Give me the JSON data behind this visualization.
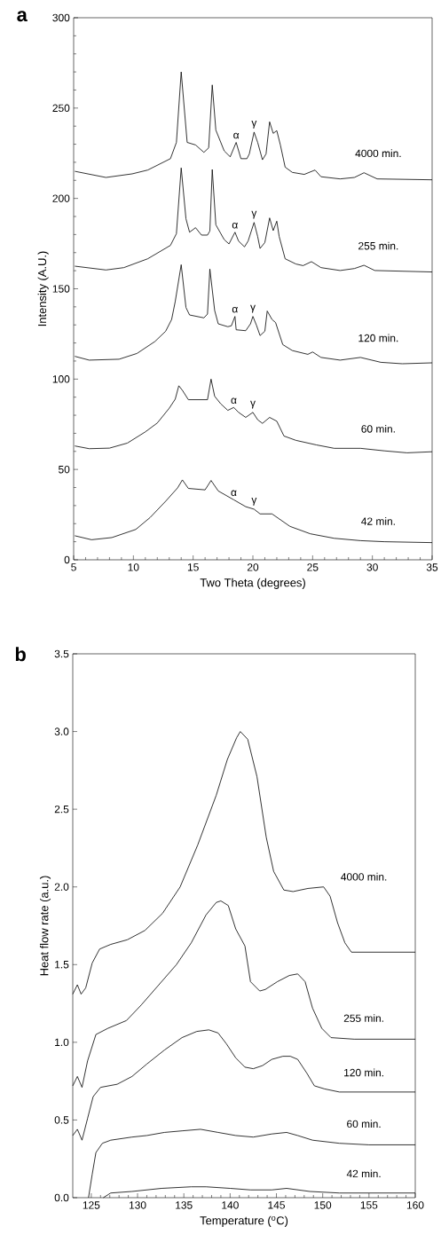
{
  "chart_data": [
    {
      "type": "line",
      "title": "a",
      "xlabel": "Two Theta (degrees)",
      "ylabel": "Intensity (A.U.)",
      "xlim": [
        5,
        35
      ],
      "ylim": [
        0,
        300
      ],
      "xticks": [
        5,
        10,
        15,
        20,
        25,
        30,
        35
      ],
      "yticks": [
        0,
        50,
        100,
        150,
        200,
        250,
        300
      ],
      "series": [
        {
          "name": "4000 min.",
          "color": "#000000",
          "x": [
            5.1,
            7.7,
            9.9,
            11.2,
            13.1,
            13.6,
            14.0,
            14.5,
            15.2,
            15.9,
            16.3,
            16.6,
            16.9,
            17.6,
            18.1,
            18.6,
            19.0,
            19.5,
            19.7,
            20.1,
            20.4,
            20.8,
            21.1,
            21.4,
            21.7,
            22.0,
            22.3,
            22.7,
            23.3,
            24.3,
            25.2,
            25.7,
            27.3,
            28.5,
            29.3,
            30.4,
            35
          ],
          "values": [
            215,
            211.6,
            213.6,
            215.7,
            222,
            231,
            270,
            231,
            229.6,
            225.5,
            228,
            262.8,
            237.8,
            226.3,
            223,
            231,
            222,
            222,
            224.6,
            236.7,
            231,
            221.4,
            224.6,
            242.4,
            236,
            237.5,
            229.6,
            217.3,
            214.4,
            213.3,
            215.7,
            212,
            210.8,
            211.6,
            214.2,
            210.8,
            210.3
          ]
        },
        {
          "name": "255 min.",
          "color": "#000000",
          "x": [
            5.1,
            7.7,
            9.2,
            11.2,
            13.1,
            13.6,
            14.0,
            14.4,
            14.7,
            15.2,
            15.7,
            16.2,
            16.4,
            16.6,
            16.9,
            17.6,
            18.0,
            18.5,
            18.8,
            19.3,
            19.6,
            20.1,
            20.4,
            20.6,
            21.0,
            21.4,
            21.7,
            22.0,
            22.2,
            22.7,
            23.6,
            24.2,
            24.9,
            25.7,
            27.3,
            28.5,
            29.3,
            30.2,
            35
          ],
          "values": [
            162.5,
            160.4,
            161.7,
            166.6,
            174,
            180.5,
            216.9,
            188.7,
            181.3,
            183.8,
            179.7,
            179.7,
            182,
            216,
            185.4,
            177.2,
            174.8,
            181.3,
            176.4,
            173.2,
            176.4,
            186.7,
            178.9,
            172.3,
            175.6,
            189.2,
            182.2,
            187.4,
            178.9,
            166.6,
            163.7,
            162.8,
            165,
            161.7,
            160.1,
            161.2,
            163,
            160.1,
            159.3
          ]
        },
        {
          "name": "120 min.",
          "color": "#000000",
          "x": [
            5.1,
            6.3,
            8.8,
            10.3,
            11.8,
            12.7,
            13.2,
            13.5,
            14.0,
            14.4,
            14.7,
            15.9,
            16.2,
            16.4,
            16.8,
            17.1,
            17.9,
            18.2,
            18.5,
            18.6,
            19.4,
            19.8,
            20.0,
            20.3,
            20.6,
            21.0,
            21.2,
            21.6,
            21.9,
            22.5,
            23.3,
            24.6,
            25.0,
            25.7,
            27.3,
            29.0,
            30.7,
            32.5,
            35
          ],
          "values": [
            112.6,
            110.5,
            111,
            114.2,
            120.8,
            126.5,
            133,
            142.9,
            163.3,
            139.6,
            135.5,
            133.9,
            136,
            160.9,
            138,
            130.6,
            129,
            129.5,
            134.7,
            127.3,
            126.8,
            130.6,
            134.7,
            129.8,
            124.1,
            126.5,
            137.7,
            133,
            131.3,
            119.1,
            115.8,
            113.7,
            115,
            112,
            110.5,
            112,
            109.3,
            108.5,
            109
          ]
        },
        {
          "name": "60 min.",
          "color": "#000000",
          "x": [
            5.1,
            6.3,
            8.0,
            9.5,
            11.0,
            12.0,
            13.0,
            13.5,
            13.8,
            14.1,
            14.6,
            16.2,
            16.5,
            16.8,
            17.3,
            17.9,
            18.4,
            18.8,
            19.4,
            20.0,
            20.4,
            20.8,
            21.4,
            22.0,
            22.6,
            23.6,
            25.3,
            26.8,
            29.0,
            31.0,
            32.9,
            35
          ],
          "values": [
            63,
            61.5,
            61.8,
            64.6,
            70.8,
            75.7,
            83.9,
            88.9,
            96.3,
            93.8,
            88.6,
            88.6,
            100,
            90.5,
            86.4,
            82.7,
            84.3,
            81.6,
            78.8,
            81.6,
            77.5,
            75.5,
            78.8,
            76.7,
            68.5,
            66.1,
            63.6,
            61.7,
            61.7,
            60.3,
            59.2,
            59.8
          ]
        },
        {
          "name": "42 min.",
          "color": "#000000",
          "x": [
            5.1,
            6.5,
            8.2,
            10.2,
            11.4,
            12.7,
            13.7,
            14.1,
            14.6,
            16.0,
            16.5,
            17.1,
            18.4,
            19.4,
            20.1,
            20.6,
            21.6,
            23.1,
            24.8,
            26.8,
            29.0,
            31.0,
            35
          ],
          "values": [
            13.3,
            11.1,
            12.3,
            16.8,
            23.4,
            32.4,
            39.8,
            44.2,
            39.5,
            38.7,
            43.9,
            38.1,
            33.2,
            29.4,
            28,
            25.4,
            25.4,
            18.5,
            14.4,
            11.9,
            10.6,
            10,
            9.5
          ]
        }
      ],
      "annotations": [
        {
          "text": "α",
          "x": 18.6,
          "y": 231
        },
        {
          "text": "γ",
          "x": 20.1,
          "y": 236.7
        },
        {
          "text": "α",
          "x": 18.5,
          "y": 181.3
        },
        {
          "text": "γ",
          "x": 20.1,
          "y": 186.7
        },
        {
          "text": "α",
          "x": 18.5,
          "y": 134.7
        },
        {
          "text": "γ",
          "x": 20.0,
          "y": 134.7
        },
        {
          "text": "α",
          "x": 18.4,
          "y": 84.3
        },
        {
          "text": "γ",
          "x": 20.0,
          "y": 81.6
        },
        {
          "text": "α",
          "x": 18.4,
          "y": 33.2
        },
        {
          "text": "γ",
          "x": 20.1,
          "y": 28
        }
      ]
    },
    {
      "type": "line",
      "title": "b",
      "xlabel": "Temperature ($^{o}$C)",
      "ylabel": "Heat flow rate  (a.u.)",
      "xlim": [
        123,
        160
      ],
      "ylim": [
        0,
        3.5
      ],
      "xticks": [
        125,
        130,
        135,
        140,
        145,
        150,
        155,
        160
      ],
      "yticks": [
        {
          "value": 0,
          "label": "0.0"
        },
        {
          "value": 0.5,
          "label": "0.5"
        },
        {
          "value": 1,
          "label": "1.0"
        },
        {
          "value": 1.5,
          "label": "1.5"
        },
        {
          "value": 2,
          "label": "2.0"
        },
        {
          "value": 2.5,
          "label": "2.5"
        },
        {
          "value": 3,
          "label": "3.0"
        },
        {
          "value": 3.5,
          "label": "3.5"
        }
      ],
      "series": [
        {
          "name": "4000 min.",
          "color": "#000000",
          "x": [
            123.0,
            123.5,
            123.9,
            124.4,
            125.1,
            125.9,
            127.1,
            128.9,
            130.8,
            132.7,
            134.6,
            136.5,
            138.5,
            139.7,
            140.7,
            141.1,
            141.9,
            142.9,
            143.9,
            144.7,
            145.8,
            146.8,
            148.4,
            150.1,
            150.8,
            151.6,
            152.4,
            153.1,
            156.6,
            160
          ],
          "values": [
            1.31,
            1.37,
            1.31,
            1.35,
            1.51,
            1.6,
            1.63,
            1.66,
            1.72,
            1.83,
            2.0,
            2.27,
            2.59,
            2.82,
            2.96,
            3.0,
            2.95,
            2.71,
            2.32,
            2.1,
            1.98,
            1.97,
            1.99,
            2.0,
            1.94,
            1.77,
            1.64,
            1.58,
            1.58,
            1.58
          ]
        },
        {
          "name": "255 min.",
          "color": "#000000",
          "x": [
            123.0,
            123.5,
            124.0,
            124.6,
            125.5,
            126.8,
            128.8,
            130.4,
            132.3,
            134.2,
            135.8,
            137.4,
            138.5,
            139.0,
            139.8,
            140.6,
            141.6,
            142.2,
            143.2,
            143.8,
            145.1,
            146.4,
            147.3,
            148.1,
            148.9,
            149.9,
            150.9,
            153.4,
            156.6,
            160
          ],
          "values": [
            0.72,
            0.78,
            0.71,
            0.88,
            1.05,
            1.09,
            1.14,
            1.24,
            1.37,
            1.5,
            1.64,
            1.82,
            1.9,
            1.91,
            1.88,
            1.73,
            1.62,
            1.39,
            1.33,
            1.34,
            1.39,
            1.43,
            1.44,
            1.39,
            1.22,
            1.09,
            1.03,
            1.02,
            1.02,
            1.02
          ]
        },
        {
          "name": "120 min.",
          "color": "#000000",
          "x": [
            123.0,
            123.5,
            124.0,
            124.6,
            125.2,
            126.0,
            127.8,
            129.4,
            131.0,
            132.9,
            134.8,
            136.4,
            137.7,
            138.7,
            139.6,
            140.6,
            141.6,
            142.5,
            143.5,
            144.5,
            145.7,
            146.5,
            147.3,
            148.3,
            149.1,
            150.2,
            151.8,
            160
          ],
          "values": [
            0.4,
            0.44,
            0.37,
            0.51,
            0.65,
            0.71,
            0.73,
            0.78,
            0.86,
            0.95,
            1.03,
            1.07,
            1.08,
            1.06,
            0.99,
            0.9,
            0.84,
            0.83,
            0.85,
            0.89,
            0.91,
            0.91,
            0.89,
            0.8,
            0.72,
            0.7,
            0.68,
            0.68
          ]
        },
        {
          "name": "60 min.",
          "color": "#000000",
          "x": [
            124.7,
            125.1,
            125.5,
            126.2,
            127.1,
            129.4,
            131.0,
            132.9,
            134.8,
            136.8,
            138.7,
            140.6,
            142.5,
            144.5,
            146.1,
            147.3,
            148.9,
            151.8,
            155.0,
            160
          ],
          "values": [
            0.0,
            0.15,
            0.29,
            0.35,
            0.37,
            0.39,
            0.4,
            0.42,
            0.43,
            0.44,
            0.42,
            0.4,
            0.39,
            0.41,
            0.42,
            0.4,
            0.37,
            0.35,
            0.34,
            0.34
          ]
        },
        {
          "name": "42 min.",
          "color": "#000000",
          "x": [
            126.3,
            127.1,
            129.4,
            132.6,
            135.8,
            137.4,
            140.0,
            142.2,
            144.5,
            146.1,
            148.6,
            151.8,
            160
          ],
          "values": [
            0.0,
            0.03,
            0.04,
            0.06,
            0.07,
            0.07,
            0.06,
            0.05,
            0.05,
            0.06,
            0.04,
            0.03,
            0.03
          ]
        }
      ],
      "grid": false
    }
  ]
}
